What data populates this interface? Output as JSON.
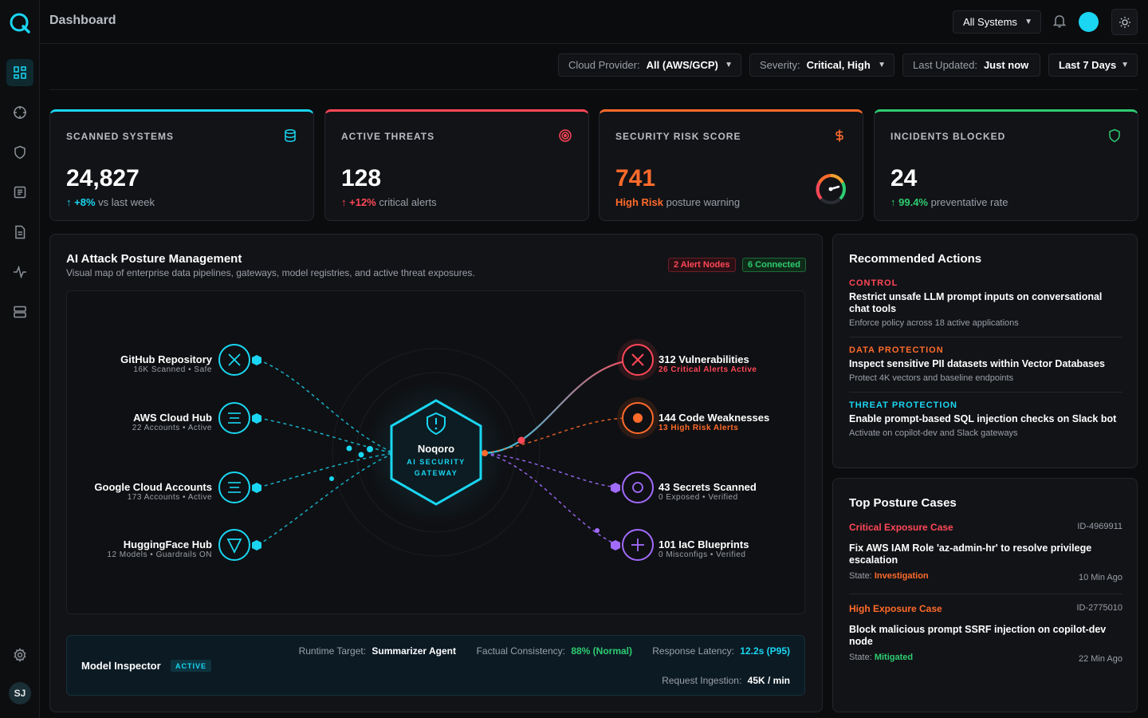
{
  "header": {
    "title": "Dashboard",
    "system_select": "All Systems"
  },
  "filters": {
    "cloud_label": "Cloud Provider:",
    "cloud_value": "All (AWS/GCP)",
    "severity_label": "Severity:",
    "severity_value": "Critical, High",
    "updated_label": "Last Updated:",
    "updated_value": "Just now",
    "range_value": "Last 7 Days"
  },
  "kpis": [
    {
      "title": "SCANNED SYSTEMS",
      "value": "24,827",
      "delta": "+8%",
      "delta_text": "vs last week",
      "color": "#1ad6f2",
      "icon": "database-icon"
    },
    {
      "title": "ACTIVE THREATS",
      "value": "128",
      "delta": "+12%",
      "delta_text": "critical alerts",
      "color": "#ff4757",
      "icon": "target-icon"
    },
    {
      "title": "SECURITY RISK SCORE",
      "value": "741",
      "delta": "High Risk",
      "delta_text": "posture warning",
      "color": "#ff6b2b",
      "icon": "dollar-icon"
    },
    {
      "title": "INCIDENTS BLOCKED",
      "value": "24",
      "delta": "99.4%",
      "delta_text": "preventative rate",
      "color": "#2ecc71",
      "icon": "shield-icon"
    }
  ],
  "posture": {
    "title": "AI Attack Posture Management",
    "subtitle": "Visual map of enterprise data pipelines, gateways, model registries, and active threat exposures.",
    "alert_badge": "2 Alert Nodes",
    "connected_badge": "6 Connected",
    "hub": {
      "name": "Noqoro",
      "line1": "AI SECURITY",
      "line2": "GATEWAY"
    },
    "sources": [
      {
        "name": "GitHub Repository",
        "meta": "16K Scanned • Safe"
      },
      {
        "name": "AWS Cloud Hub",
        "meta": "22 Accounts • Active"
      },
      {
        "name": "Google Cloud Accounts",
        "meta": "173 Accounts • Active"
      },
      {
        "name": "HuggingFace Hub",
        "meta": "12 Models • Guardrails ON"
      }
    ],
    "targets": [
      {
        "name": "312 Vulnerabilities",
        "meta": "26 Critical Alerts Active"
      },
      {
        "name": "144 Code Weaknesses",
        "meta": "13 High Risk Alerts"
      },
      {
        "name": "43 Secrets Scanned",
        "meta": "0 Exposed • Verified"
      },
      {
        "name": "101 IaC Blueprints",
        "meta": "0 Misconfigs • Verified"
      }
    ]
  },
  "inspector": {
    "title": "Model Inspector",
    "badge": "ACTIVE",
    "runtime_label": "Runtime Target:",
    "runtime_value": "Summarizer Agent",
    "consistency_label": "Factual Consistency:",
    "consistency_value": "88% (Normal)",
    "latency_label": "Response Latency:",
    "latency_value": "12.2s (P95)",
    "ingestion_label": "Request Ingestion:",
    "ingestion_value": "45K / min"
  },
  "actions": {
    "title": "Recommended Actions",
    "items": [
      {
        "category": "CONTROL",
        "title": "Restrict unsafe LLM prompt inputs on conversational chat tools",
        "desc": "Enforce policy across 18 active applications"
      },
      {
        "category": "DATA PROTECTION",
        "title": "Inspect sensitive PII datasets within Vector Databases",
        "desc": "Protect 4K vectors and baseline endpoints"
      },
      {
        "category": "THREAT PROTECTION",
        "title": "Enable prompt-based SQL injection checks on Slack bot",
        "desc": "Activate on copilot-dev and Slack gateways"
      }
    ]
  },
  "cases": {
    "title": "Top Posture Cases",
    "items": [
      {
        "type": "Critical Exposure Case",
        "id": "ID-4969911",
        "title": "Fix AWS IAM Role 'az-admin-hr' to resolve privilege escalation",
        "state_label": "State:",
        "state": "Investigation",
        "time": "10 Min Ago"
      },
      {
        "type": "High Exposure Case",
        "id": "ID-2775010",
        "title": "Block malicious prompt SSRF injection on copilot-dev node",
        "state_label": "State:",
        "state": "Mitigated",
        "time": "22 Min Ago"
      }
    ]
  },
  "user": {
    "initials": "SJ"
  }
}
